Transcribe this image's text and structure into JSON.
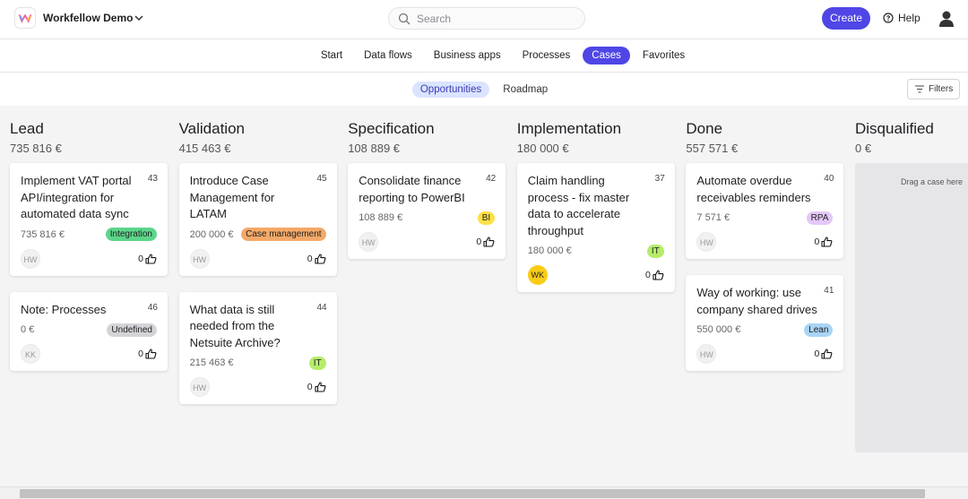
{
  "header": {
    "app_name": "Workfellow Demo",
    "search_placeholder": "Search",
    "create": "Create",
    "help": "Help"
  },
  "nav": {
    "items": [
      "Start",
      "Data flows",
      "Business apps",
      "Processes",
      "Cases",
      "Favorites"
    ],
    "active": 4
  },
  "subnav": {
    "items": [
      "Opportunities",
      "Roadmap"
    ],
    "active": 0,
    "filters": "Filters"
  },
  "columns": [
    {
      "title": "Lead",
      "total": "735 816 €",
      "cards": [
        {
          "title": "Implement VAT portal API/integration for automated data sync",
          "id": 43,
          "amount": "735 816 €",
          "tag": "Integration",
          "tag_color": "#5cd68a",
          "avatar": "HW",
          "avatar_color": "#f1f1f2",
          "likes": 0
        },
        {
          "title": "Note: Processes",
          "id": 46,
          "amount": "0 €",
          "tag": "Undefined",
          "tag_color": "#d4d4d8",
          "avatar": "KK",
          "avatar_color": "#f1f1f2",
          "likes": 0
        }
      ]
    },
    {
      "title": "Validation",
      "total": "415 463 €",
      "cards": [
        {
          "title": "Introduce Case Management for LATAM",
          "id": 45,
          "amount": "200 000 €",
          "tag": "Case management",
          "tag_color": "#f4a968",
          "avatar": "HW",
          "avatar_color": "#f1f1f2",
          "likes": 0
        },
        {
          "title": "What data is still needed from the Netsuite Archive?",
          "id": 44,
          "amount": "215 463 €",
          "tag": "IT",
          "tag_color": "#b5ec6a",
          "avatar": "HW",
          "avatar_color": "#f1f1f2",
          "likes": 0
        }
      ]
    },
    {
      "title": "Specification",
      "total": "108 889 €",
      "cards": [
        {
          "title": "Consolidate finance reporting to PowerBI",
          "id": 42,
          "amount": "108 889 €",
          "tag": "BI",
          "tag_color": "#fde047",
          "avatar": "HW",
          "avatar_color": "#f1f1f2",
          "likes": 0
        }
      ]
    },
    {
      "title": "Implementation",
      "total": "180 000 €",
      "cards": [
        {
          "title": "Claim handling process - fix master data to accelerate throughput",
          "id": 37,
          "amount": "180 000 €",
          "tag": "IT",
          "tag_color": "#b5ec6a",
          "avatar": "WK",
          "avatar_color": "#facc15",
          "likes": 0
        }
      ]
    },
    {
      "title": "Done",
      "total": "557 571 €",
      "cards": [
        {
          "title": "Automate overdue receivables reminders",
          "id": 40,
          "amount": "7 571 €",
          "tag": "RPA",
          "tag_color": "#e3c8f7",
          "avatar": "HW",
          "avatar_color": "#f1f1f2",
          "likes": 0
        },
        {
          "title": "Way of working: use company shared drives",
          "id": 41,
          "amount": "550 000 €",
          "tag": "Lean",
          "tag_color": "#a9d4f5",
          "avatar": "HW",
          "avatar_color": "#f1f1f2",
          "likes": 0
        }
      ]
    },
    {
      "title": "Disqualified",
      "total": "0 €",
      "placeholder": "Drag a case here",
      "cards": []
    }
  ]
}
